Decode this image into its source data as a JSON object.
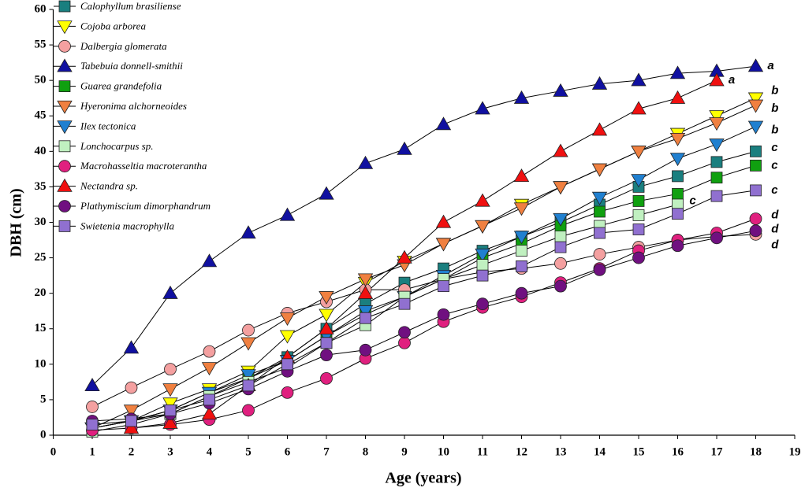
{
  "chart_data": {
    "type": "line",
    "x_label": "Age (years)",
    "y_label": "DBH (cm)",
    "x": [
      1,
      2,
      3,
      4,
      5,
      6,
      7,
      8,
      9,
      10,
      11,
      12,
      13,
      14,
      15,
      16,
      17,
      18
    ],
    "xlim": [
      0,
      19
    ],
    "xticks": [
      0,
      1,
      2,
      3,
      4,
      5,
      6,
      7,
      8,
      9,
      10,
      11,
      12,
      13,
      14,
      15,
      16,
      17,
      18,
      19
    ],
    "ylim": [
      0,
      60
    ],
    "yticks": [
      0,
      5,
      10,
      15,
      20,
      25,
      30,
      35,
      40,
      45,
      50,
      55,
      60
    ],
    "legend": "upper left",
    "series": [
      {
        "name": "Calophyllum brasiliense",
        "color": "#1a7f7f",
        "marker": "square",
        "values": [
          1,
          2,
          3.5,
          6,
          8,
          11,
          15,
          18.5,
          21.5,
          23.5,
          26,
          28,
          30,
          32.5,
          35,
          36.5,
          38.5,
          40
        ]
      },
      {
        "name": "Cojoba arborea",
        "color": "#ffff00",
        "marker": "triangle-down",
        "values": [
          1,
          2,
          4.5,
          6.5,
          9,
          14,
          17,
          21.5,
          24.5,
          27,
          29.5,
          32.5,
          35,
          37.5,
          40,
          42.5,
          45,
          47.5
        ]
      },
      {
        "name": "Dalbergia glomerata",
        "color": "#f4a0a0",
        "marker": "circle",
        "values": [
          4,
          6.7,
          9.3,
          11.8,
          14.8,
          17.2,
          18.8,
          20.5,
          20.5,
          22,
          23,
          23.5,
          24.2,
          25.5,
          26.5,
          27.5,
          28,
          28.3
        ]
      },
      {
        "name": "Tabebuia donnell-smithii",
        "color": "#1010a0",
        "marker": "triangle-up",
        "values": [
          7,
          12.3,
          20,
          24.5,
          28.5,
          31,
          34,
          38.3,
          40.3,
          43.8,
          46,
          47.5,
          48.5,
          49.5,
          50,
          51,
          51.3,
          52
        ]
      },
      {
        "name": "Guarea grandefolia",
        "color": "#10a010",
        "marker": "square",
        "values": [
          1,
          2,
          3,
          5.5,
          8,
          10.5,
          14,
          17,
          19.5,
          22,
          25,
          27,
          29.5,
          31.5,
          33,
          34,
          36.3,
          38
        ]
      },
      {
        "name": "Hyeronima alchorneoides",
        "color": "#f08040",
        "marker": "triangle-down",
        "values": [
          1,
          3.5,
          6.5,
          9.5,
          13,
          16.5,
          19.5,
          22,
          24,
          27,
          29.5,
          32,
          35,
          37.5,
          40,
          41.8,
          44,
          46.5
        ]
      },
      {
        "name": "Ilex tectonica",
        "color": "#2080d0",
        "marker": "triangle-down",
        "values": [
          1,
          2,
          3.5,
          6,
          8.5,
          10.5,
          14,
          17.5,
          19.5,
          22.5,
          25.5,
          28,
          30.5,
          33.5,
          36,
          39,
          41,
          43.5
        ]
      },
      {
        "name": "Lonchocarpus sp.",
        "color": "#c0f0c0",
        "marker": "square",
        "values": [
          0.5,
          1.5,
          3,
          5.5,
          7.5,
          9.5,
          13,
          15.5,
          19.5,
          22,
          24,
          26,
          28,
          29.5,
          31,
          32.5,
          null,
          null
        ]
      },
      {
        "name": "Macrohasseltia macroterantha",
        "color": "#e0207f",
        "marker": "circle",
        "values": [
          0.7,
          1,
          1.5,
          2.2,
          3.5,
          6,
          8,
          10.8,
          13,
          16,
          18,
          19.5,
          21.5,
          23.5,
          26,
          27.5,
          28.5,
          30.5
        ]
      },
      {
        "name": "Nectandra sp.",
        "color": "#f01010",
        "marker": "triangle-up",
        "values": [
          null,
          1,
          1.7,
          3,
          7,
          11,
          15,
          20,
          25,
          30,
          33,
          36.5,
          40,
          43,
          46,
          47.5,
          50,
          null
        ]
      },
      {
        "name": "Plathymiscium dimorphandrum",
        "color": "#701080",
        "marker": "circle",
        "values": [
          2,
          2.3,
          3,
          4.5,
          6.5,
          9,
          11.3,
          12,
          14.5,
          17,
          18.5,
          20,
          21,
          23.3,
          25,
          26.7,
          27.8,
          28.8
        ]
      },
      {
        "name": "Swietenia macrophylla",
        "color": "#9070d0",
        "marker": "square",
        "values": [
          1.5,
          2,
          3.5,
          5,
          7,
          10,
          13,
          16.5,
          18.5,
          21,
          22.5,
          23.8,
          26.5,
          28.5,
          29,
          31.2,
          33.7,
          34.5
        ]
      }
    ],
    "annotations": [
      {
        "text": "a",
        "x": 18.3,
        "y": 52
      },
      {
        "text": "a",
        "x": 17.3,
        "y": 50
      },
      {
        "text": "b",
        "x": 18.4,
        "y": 48.5
      },
      {
        "text": "b",
        "x": 18.4,
        "y": 46
      },
      {
        "text": "b",
        "x": 18.4,
        "y": 43
      },
      {
        "text": "c",
        "x": 18.4,
        "y": 40.5
      },
      {
        "text": "c",
        "x": 18.4,
        "y": 38
      },
      {
        "text": "c",
        "x": 18.4,
        "y": 34.5
      },
      {
        "text": "c",
        "x": 16.3,
        "y": 33
      },
      {
        "text": "d",
        "x": 18.4,
        "y": 31
      },
      {
        "text": "d",
        "x": 18.4,
        "y": 29
      },
      {
        "text": "d",
        "x": 18.4,
        "y": 26.8
      }
    ]
  }
}
